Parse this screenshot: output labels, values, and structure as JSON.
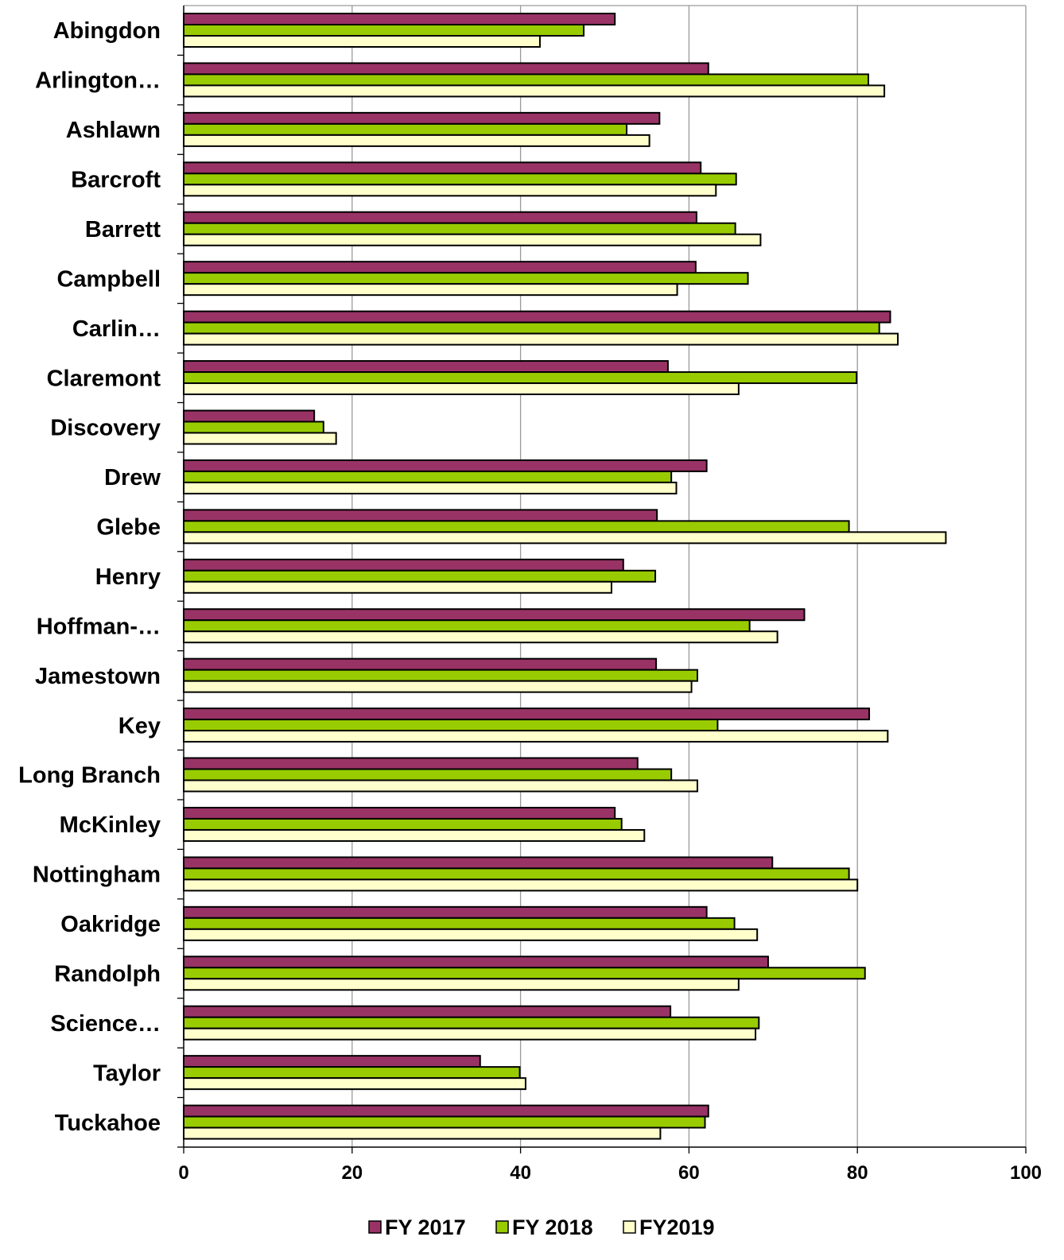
{
  "chart_data": {
    "type": "bar",
    "orientation": "horizontal",
    "categories": [
      "Abingdon",
      "Arlington…",
      "Ashlawn",
      "Barcroft",
      "Barrett",
      "Campbell",
      "Carlin…",
      "Claremont",
      "Discovery",
      "Drew",
      "Glebe",
      "Henry",
      "Hoffman-…",
      "Jamestown",
      "Key",
      "Long Branch",
      "McKinley",
      "Nottingham",
      "Oakridge",
      "Randolph",
      "Science…",
      "Taylor",
      "Tuckahoe"
    ],
    "series": [
      {
        "name": "FY 2017",
        "color": "#993366",
        "values": [
          51.2,
          62.3,
          56.5,
          61.4,
          60.9,
          60.8,
          83.9,
          57.5,
          15.5,
          62.1,
          56.2,
          52.2,
          73.7,
          56.1,
          81.4,
          53.9,
          51.2,
          69.9,
          62.1,
          69.4,
          57.8,
          35.2,
          62.3
        ]
      },
      {
        "name": "FY 2018",
        "color": "#99CC00",
        "values": [
          47.5,
          81.3,
          52.6,
          65.6,
          65.5,
          67.0,
          82.6,
          79.9,
          16.6,
          57.9,
          79.0,
          56.0,
          67.2,
          61.0,
          63.4,
          57.9,
          52.0,
          79.0,
          65.4,
          80.9,
          68.3,
          39.9,
          61.9
        ]
      },
      {
        "name": "FY2019",
        "color": "#FFFFCC",
        "values": [
          42.3,
          83.2,
          55.3,
          63.2,
          68.5,
          58.6,
          84.8,
          65.9,
          18.1,
          58.5,
          90.5,
          50.8,
          70.5,
          60.3,
          83.6,
          61.0,
          54.7,
          80.0,
          68.1,
          65.9,
          67.9,
          40.6,
          56.6
        ]
      }
    ],
    "xticks": [
      "0",
      "20",
      "40",
      "60",
      "80",
      "100"
    ],
    "xlim": [
      0,
      100
    ],
    "grid": true,
    "legend": "bottom"
  }
}
